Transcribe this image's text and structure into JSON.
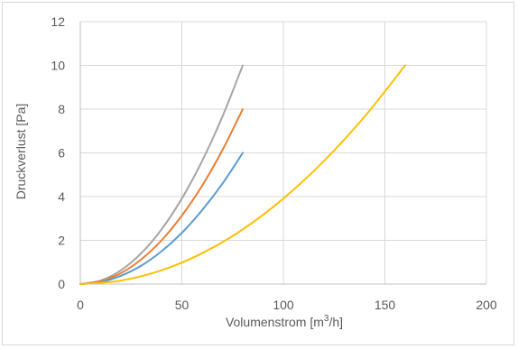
{
  "chart_data": {
    "type": "line",
    "title": "",
    "xlabel": "Volumenstrom [m",
    "xlabel_sup": "3",
    "xlabel_end": "/h]",
    "ylabel": "Druckverlust [Pa]",
    "xlim": [
      0,
      200
    ],
    "ylim": [
      0,
      12
    ],
    "xticks": [
      0,
      50,
      100,
      150,
      200
    ],
    "yticks": [
      0,
      2,
      4,
      6,
      8,
      10,
      12
    ],
    "x_tick_labels": [
      "0",
      "50",
      "100",
      "150",
      "200"
    ],
    "y_tick_labels": [
      "0",
      "2",
      "4",
      "6",
      "8",
      "10",
      "12"
    ],
    "grid": true,
    "legend": "none",
    "series": [
      {
        "color": "#a5a5a5",
        "x": [
          0,
          10,
          20,
          30,
          40,
          50,
          60,
          70,
          80
        ],
        "y": [
          0,
          0.16,
          0.63,
          1.41,
          2.5,
          3.91,
          5.63,
          7.66,
          10.0
        ]
      },
      {
        "color": "#ed7d31",
        "x": [
          0,
          10,
          20,
          30,
          40,
          50,
          60,
          70,
          80
        ],
        "y": [
          0,
          0.13,
          0.5,
          1.13,
          2.0,
          3.13,
          4.5,
          6.13,
          8.0
        ]
      },
      {
        "color": "#5b9bd5",
        "x": [
          0,
          10,
          20,
          30,
          40,
          50,
          60,
          70,
          80
        ],
        "y": [
          0,
          0.09,
          0.38,
          0.84,
          1.5,
          2.34,
          3.38,
          4.59,
          6.0
        ]
      },
      {
        "color": "#ffc000",
        "x": [
          0,
          20,
          40,
          60,
          80,
          100,
          120,
          140,
          160
        ],
        "y": [
          0,
          0.16,
          0.63,
          1.41,
          2.5,
          3.91,
          5.63,
          7.66,
          10.0
        ]
      }
    ]
  }
}
